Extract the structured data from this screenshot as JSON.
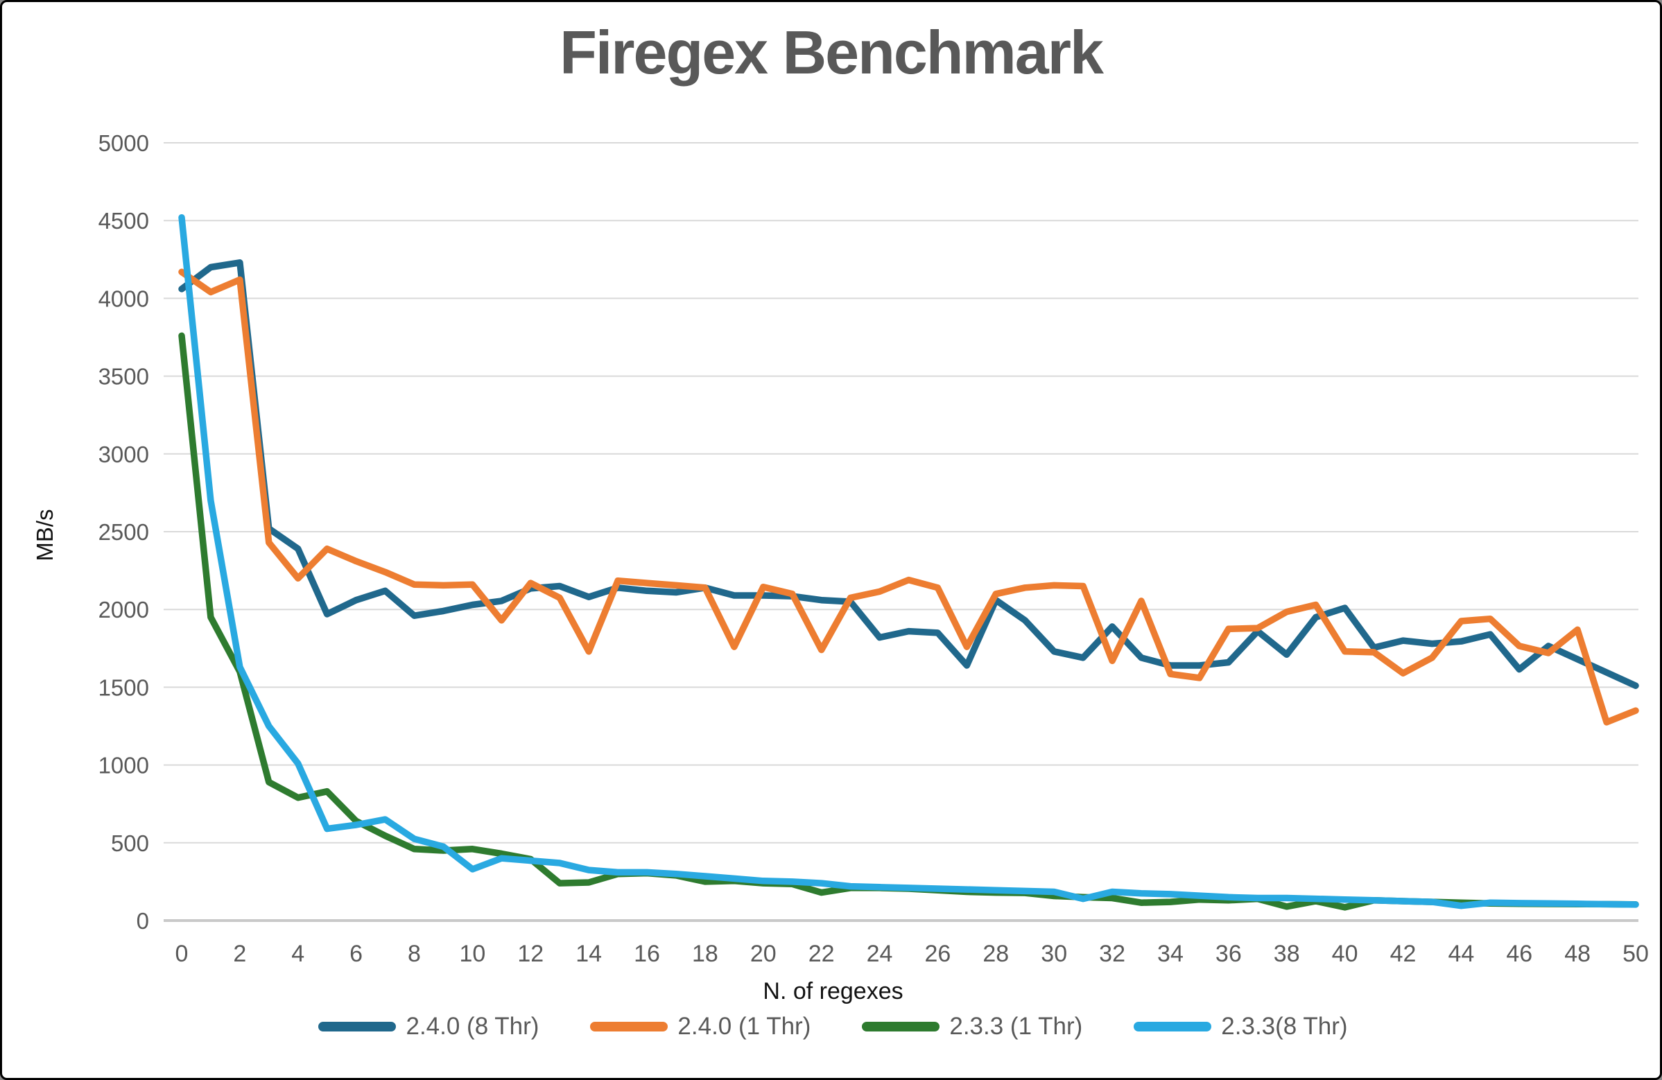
{
  "title": "Firegex Benchmark",
  "axes": {
    "y_label": "MB/s",
    "x_label": "N. of regexes",
    "y_ticks": [
      0,
      500,
      1000,
      1500,
      2000,
      2500,
      3000,
      3500,
      4000,
      4500,
      5000
    ],
    "x_ticks": [
      0,
      2,
      4,
      6,
      8,
      10,
      12,
      14,
      16,
      18,
      20,
      22,
      24,
      26,
      28,
      30,
      32,
      34,
      36,
      38,
      40,
      42,
      44,
      46,
      48,
      50
    ]
  },
  "colors": {
    "series_240_8thr": "#20688C",
    "series_240_1thr": "#ED7D31",
    "series_233_1thr": "#2E7B2F",
    "series_233_8thr": "#29A9E1",
    "gridline": "#D9D9D9",
    "zero_line": "#C9C9C9",
    "tick_text": "#595959",
    "title_text": "#595959",
    "axis_title_text": "#111111"
  },
  "chart_data": {
    "type": "line",
    "title": "Firegex Benchmark",
    "xlabel": "N. of regexes",
    "ylabel": "MB/s",
    "xlim": [
      0,
      50
    ],
    "ylim": [
      0,
      5000
    ],
    "grid": true,
    "legend_position": "bottom",
    "x": [
      0,
      1,
      2,
      3,
      4,
      5,
      6,
      7,
      8,
      9,
      10,
      11,
      12,
      13,
      14,
      15,
      16,
      17,
      18,
      19,
      20,
      21,
      22,
      23,
      24,
      25,
      26,
      27,
      28,
      29,
      30,
      31,
      32,
      33,
      34,
      35,
      36,
      37,
      38,
      39,
      40,
      41,
      42,
      43,
      44,
      45,
      46,
      47,
      48,
      49,
      50
    ],
    "series": [
      {
        "name": "2.4.0 (8 Thr)",
        "color_key": "series_240_8thr",
        "values": [
          4060,
          4200,
          4230,
          2520,
          2390,
          1970,
          2060,
          2120,
          1960,
          1990,
          2030,
          2055,
          2135,
          2150,
          2080,
          2140,
          2120,
          2110,
          2140,
          2090,
          2090,
          2085,
          2060,
          2050,
          1820,
          1860,
          1850,
          1640,
          2060,
          1930,
          1730,
          1690,
          1890,
          1690,
          1640,
          1640,
          1660,
          1860,
          1710,
          1950,
          2010,
          1755,
          1800,
          1780,
          1795,
          1840,
          1615,
          1765,
          1680,
          1595,
          1510
        ]
      },
      {
        "name": "2.4.0 (1 Thr)",
        "color_key": "series_240_1thr",
        "values": [
          4170,
          4040,
          4120,
          2430,
          2200,
          2390,
          2310,
          2240,
          2160,
          2155,
          2160,
          1930,
          2170,
          2075,
          1730,
          2185,
          2170,
          2155,
          2140,
          1760,
          2145,
          2100,
          1740,
          2075,
          2115,
          2190,
          2140,
          1760,
          2100,
          2140,
          2155,
          2150,
          1670,
          2055,
          1585,
          1560,
          1875,
          1880,
          1985,
          2030,
          1730,
          1725,
          1590,
          1690,
          1925,
          1940,
          1765,
          1720,
          1870,
          1275,
          1350
        ]
      },
      {
        "name": "2.3.3 (1 Thr)",
        "color_key": "series_233_1thr",
        "values": [
          3760,
          1950,
          1600,
          890,
          790,
          830,
          640,
          545,
          460,
          450,
          460,
          430,
          395,
          240,
          245,
          300,
          305,
          290,
          250,
          255,
          240,
          235,
          180,
          210,
          210,
          205,
          195,
          185,
          180,
          178,
          158,
          150,
          145,
          115,
          120,
          135,
          130,
          140,
          90,
          125,
          85,
          130,
          125,
          120,
          115,
          110,
          108,
          107,
          106,
          105,
          104
        ]
      },
      {
        "name": "2.3.3(8 Thr)",
        "color_key": "series_233_8thr",
        "values": [
          4520,
          2700,
          1630,
          1250,
          1010,
          590,
          615,
          650,
          525,
          475,
          330,
          400,
          385,
          370,
          325,
          310,
          310,
          300,
          285,
          270,
          255,
          250,
          240,
          220,
          215,
          210,
          205,
          200,
          195,
          190,
          185,
          140,
          185,
          175,
          170,
          160,
          150,
          145,
          145,
          140,
          135,
          130,
          125,
          120,
          95,
          115,
          112,
          110,
          108,
          105,
          103
        ]
      }
    ]
  }
}
